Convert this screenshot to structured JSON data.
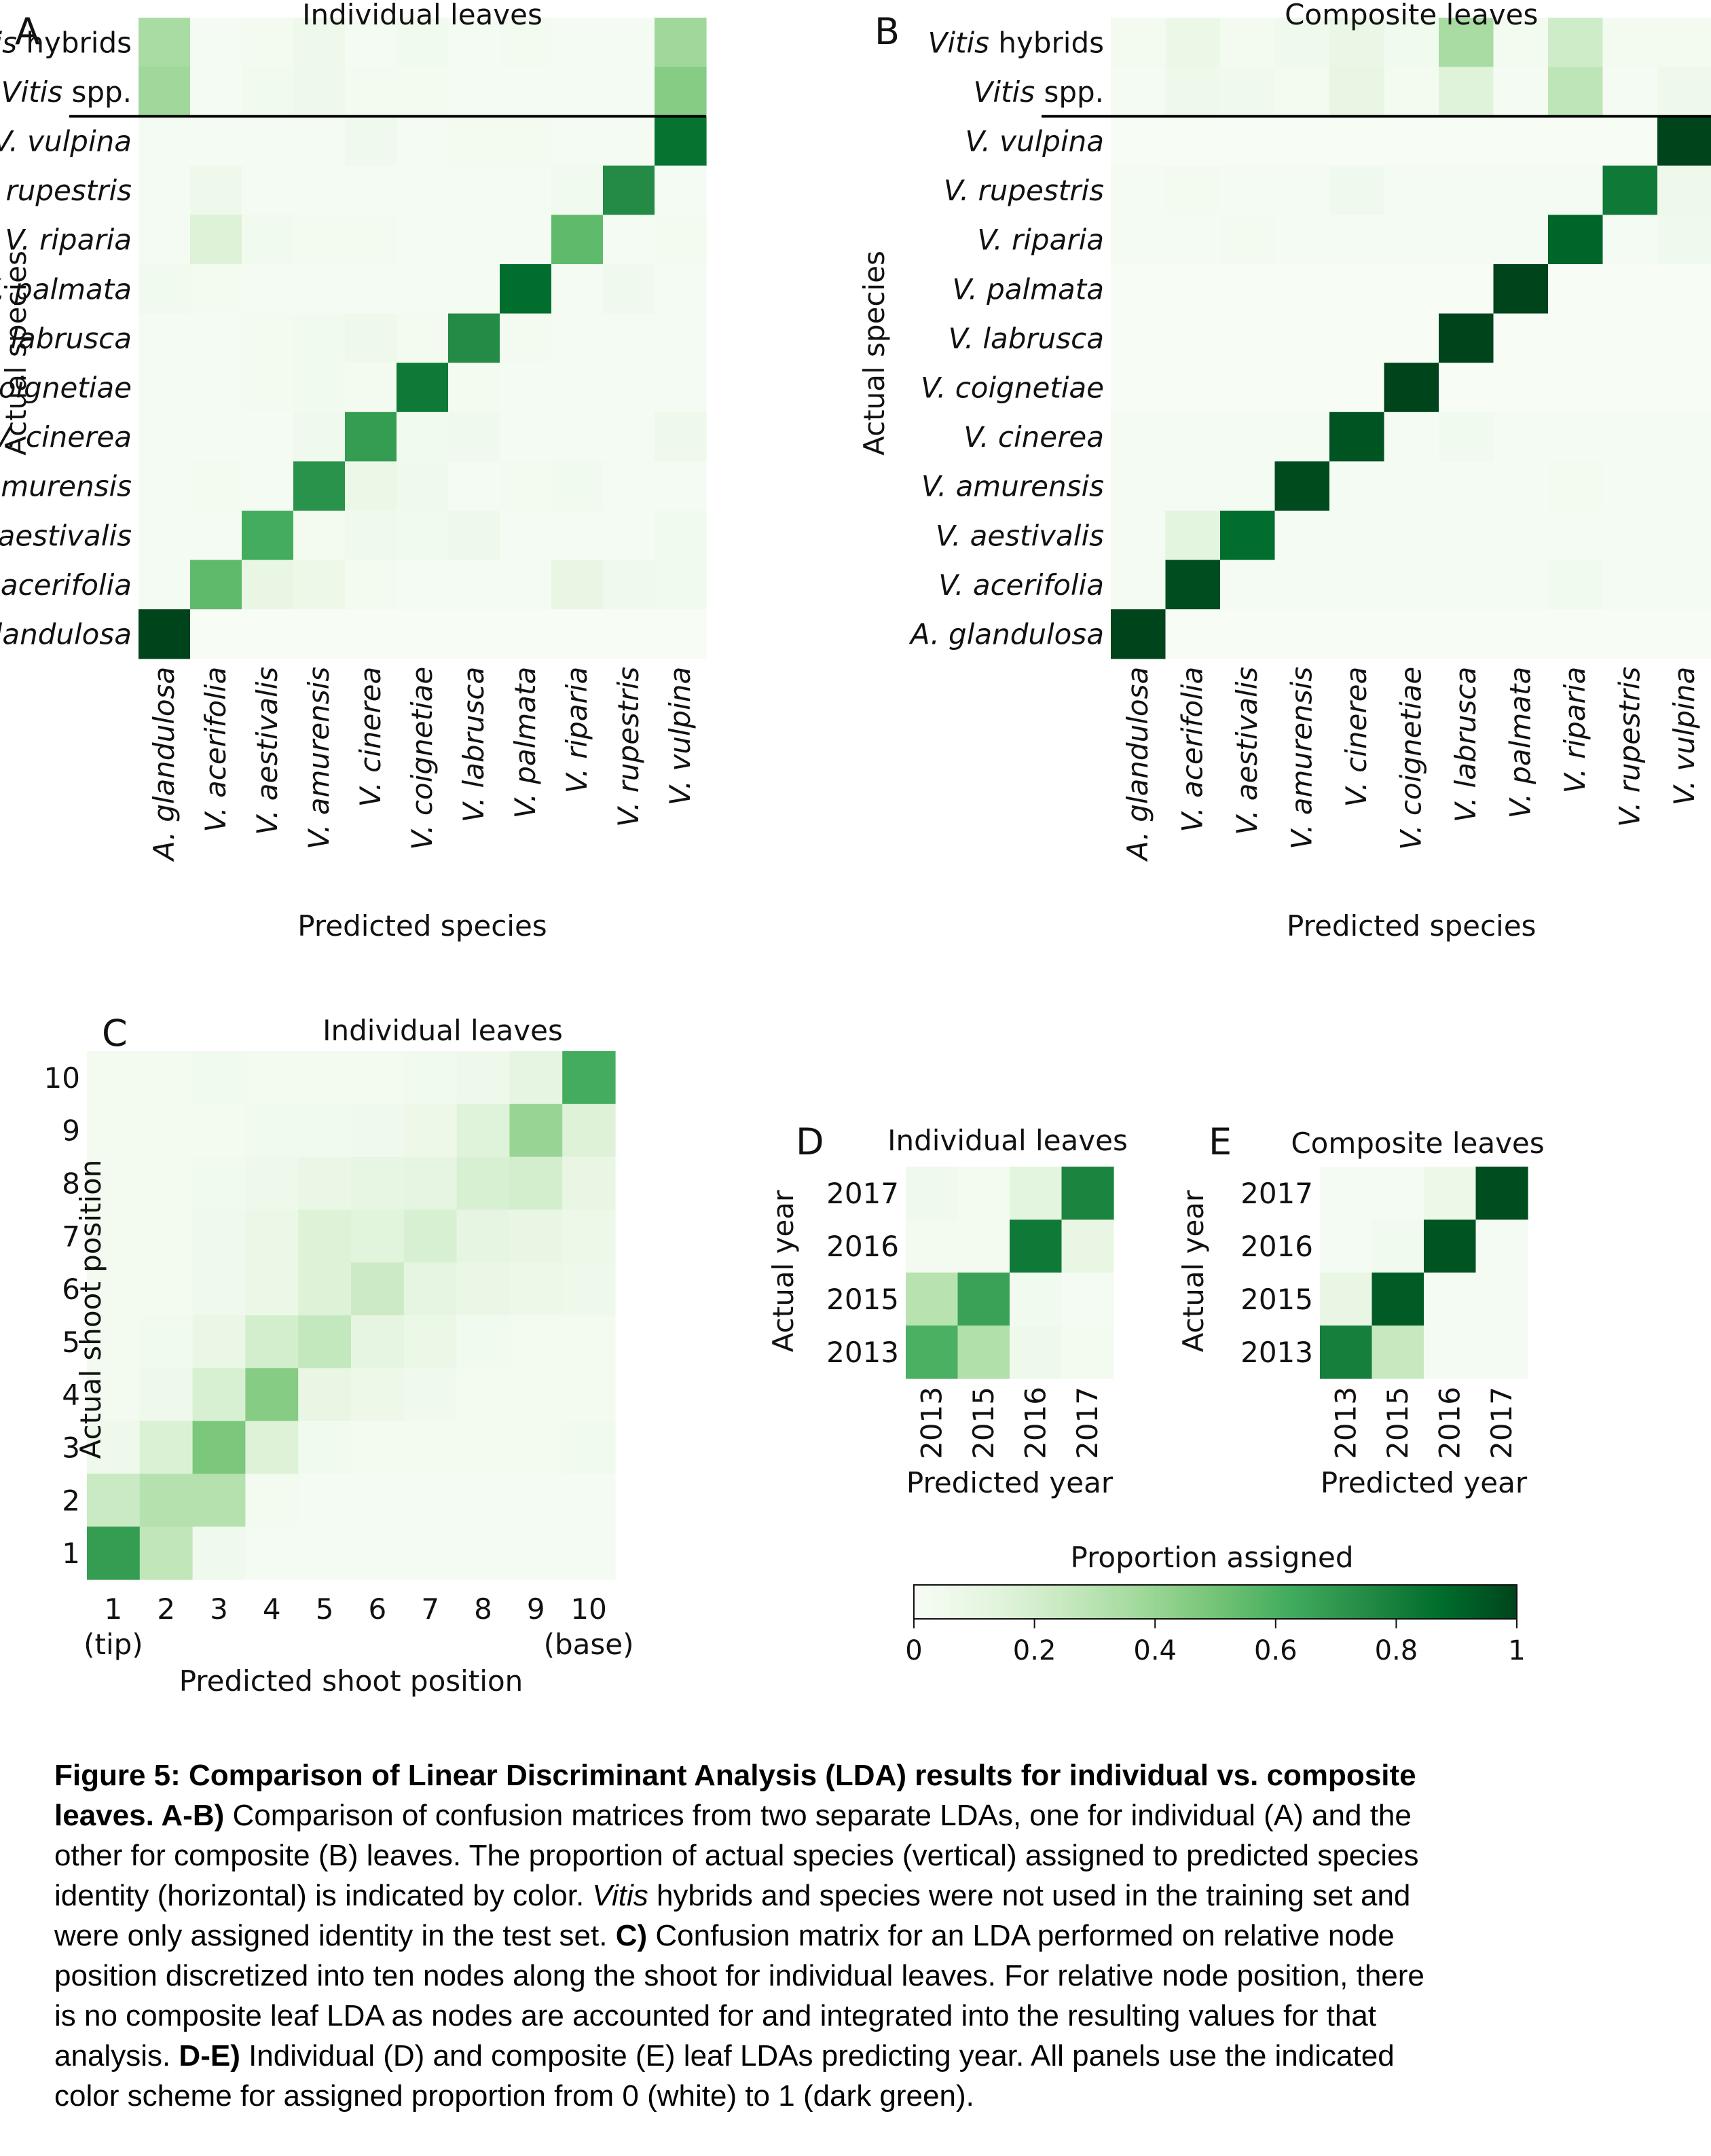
{
  "colorbar": {
    "title": "Proportion assigned",
    "ticks": [
      0,
      0.2,
      0.4,
      0.6,
      0.8,
      1
    ],
    "tick_labels": [
      "0",
      "0.2",
      "0.4",
      "0.6",
      "0.8",
      "1"
    ],
    "color_low": "#f7fcf5",
    "color_high": "#00441b"
  },
  "chart_data": [
    {
      "type": "heatmap",
      "panel": "A",
      "title": "Individual leaves",
      "xlabel": "Predicted species",
      "ylabel": "Actual species",
      "x_categories": [
        "A. glandulosa",
        "V. acerifolia",
        "V. aestivalis",
        "V. amurensis",
        "V. cinerea",
        "V. coignetiae",
        "V. labrusca",
        "V. palmata",
        "V. riparia",
        "V. rupestris",
        "V. vulpina"
      ],
      "y_categories": [
        "Vitis hybrids",
        "Vitis spp.",
        "V. vulpina",
        "V. rupestris",
        "V. riparia",
        "V. palmata",
        "V. labrusca",
        "V. coignetiae",
        "V. cinerea",
        "V. amurensis",
        "V. aestivalis",
        "V. acerifolia",
        "A. glandulosa"
      ],
      "values": [
        [
          0.35,
          0.02,
          0.03,
          0.06,
          0.02,
          0.04,
          0.02,
          0.03,
          0.02,
          0.02,
          0.38
        ],
        [
          0.38,
          0.02,
          0.04,
          0.06,
          0.03,
          0.03,
          0.02,
          0.02,
          0.02,
          0.02,
          0.45
        ],
        [
          0.02,
          0.02,
          0.02,
          0.02,
          0.05,
          0.02,
          0.03,
          0.03,
          0.02,
          0.02,
          0.85
        ],
        [
          0.02,
          0.06,
          0.02,
          0.02,
          0.02,
          0.02,
          0.02,
          0.02,
          0.04,
          0.75,
          0.02
        ],
        [
          0.02,
          0.16,
          0.04,
          0.03,
          0.03,
          0.02,
          0.02,
          0.02,
          0.55,
          0.02,
          0.03
        ],
        [
          0.04,
          0.03,
          0.02,
          0.02,
          0.02,
          0.02,
          0.02,
          0.87,
          0.02,
          0.05,
          0.02
        ],
        [
          0.02,
          0.02,
          0.03,
          0.04,
          0.06,
          0.03,
          0.75,
          0.03,
          0.02,
          0.02,
          0.02
        ],
        [
          0.02,
          0.02,
          0.03,
          0.04,
          0.03,
          0.82,
          0.03,
          0.02,
          0.02,
          0.02,
          0.02
        ],
        [
          0.02,
          0.02,
          0.02,
          0.05,
          0.68,
          0.04,
          0.05,
          0.02,
          0.02,
          0.02,
          0.06
        ],
        [
          0.02,
          0.03,
          0.02,
          0.72,
          0.08,
          0.05,
          0.02,
          0.03,
          0.04,
          0.02,
          0.02
        ],
        [
          0.02,
          0.02,
          0.62,
          0.03,
          0.05,
          0.04,
          0.06,
          0.02,
          0.02,
          0.02,
          0.04
        ],
        [
          0.02,
          0.55,
          0.1,
          0.07,
          0.03,
          0.02,
          0.02,
          0.02,
          0.1,
          0.05,
          0.04
        ],
        [
          1.0,
          0,
          0,
          0,
          0,
          0,
          0,
          0,
          0,
          0,
          0
        ]
      ],
      "separator_after_row": 2,
      "vmin": 0,
      "vmax": 1
    },
    {
      "type": "heatmap",
      "panel": "B",
      "title": "Composite leaves",
      "xlabel": "Predicted species",
      "ylabel": "Actual species",
      "x_categories": [
        "A. glandulosa",
        "V. acerifolia",
        "V. aestivalis",
        "V. amurensis",
        "V. cinerea",
        "V. coignetiae",
        "V. labrusca",
        "V. palmata",
        "V. riparia",
        "V. rupestris",
        "V. vulpina"
      ],
      "y_categories": [
        "Vitis hybrids",
        "Vitis spp.",
        "V. vulpina",
        "V. rupestris",
        "V. riparia",
        "V. palmata",
        "V. labrusca",
        "V. coignetiae",
        "V. cinerea",
        "V. amurensis",
        "V. aestivalis",
        "V. acerifolia",
        "A. glandulosa"
      ],
      "values": [
        [
          0.03,
          0.08,
          0.03,
          0.05,
          0.09,
          0.04,
          0.35,
          0.03,
          0.22,
          0.03,
          0.03
        ],
        [
          0.02,
          0.06,
          0.05,
          0.03,
          0.1,
          0.03,
          0.15,
          0.02,
          0.28,
          0.02,
          0.06
        ],
        [
          0,
          0,
          0,
          0,
          0,
          0,
          0,
          0,
          0,
          0,
          1.0
        ],
        [
          0.02,
          0.03,
          0.02,
          0.02,
          0.05,
          0.02,
          0.02,
          0.02,
          0.02,
          0.82,
          0.06
        ],
        [
          0.02,
          0.02,
          0.03,
          0.02,
          0.02,
          0.02,
          0.02,
          0.02,
          0.9,
          0.02,
          0.05
        ],
        [
          0,
          0,
          0,
          0,
          0,
          0,
          0,
          1.0,
          0,
          0,
          0
        ],
        [
          0,
          0,
          0,
          0,
          0,
          0,
          1.0,
          0,
          0,
          0,
          0
        ],
        [
          0,
          0,
          0,
          0,
          0,
          1.0,
          0,
          0,
          0,
          0,
          0
        ],
        [
          0.02,
          0.02,
          0.02,
          0.02,
          0.95,
          0.02,
          0.04,
          0.02,
          0.02,
          0.02,
          0.02
        ],
        [
          0.02,
          0.02,
          0.02,
          0.98,
          0.02,
          0.02,
          0.02,
          0.02,
          0.03,
          0.02,
          0.02
        ],
        [
          0.02,
          0.13,
          0.87,
          0.02,
          0.02,
          0.02,
          0.02,
          0.02,
          0.02,
          0.02,
          0.02
        ],
        [
          0.02,
          0.97,
          0.02,
          0.02,
          0.02,
          0.02,
          0.02,
          0.02,
          0.04,
          0.02,
          0.02
        ],
        [
          1.0,
          0,
          0,
          0,
          0,
          0,
          0,
          0,
          0,
          0,
          0
        ]
      ],
      "separator_after_row": 2,
      "vmin": 0,
      "vmax": 1
    },
    {
      "type": "heatmap",
      "panel": "C",
      "title": "Individual leaves",
      "xlabel": "Predicted shoot position",
      "ylabel": "Actual shoot position",
      "x_categories": [
        "1",
        "2",
        "3",
        "4",
        "5",
        "6",
        "7",
        "8",
        "9",
        "10"
      ],
      "x_sublabels": [
        "(tip)",
        "",
        "",
        "",
        "",
        "",
        "",
        "",
        "",
        "(base)"
      ],
      "y_categories": [
        "10",
        "9",
        "8",
        "7",
        "6",
        "5",
        "4",
        "3",
        "2",
        "1"
      ],
      "values": [
        [
          0.03,
          0.03,
          0.04,
          0.03,
          0.03,
          0.03,
          0.04,
          0.06,
          0.12,
          0.62
        ],
        [
          0.03,
          0.03,
          0.03,
          0.04,
          0.04,
          0.05,
          0.07,
          0.15,
          0.4,
          0.16
        ],
        [
          0.03,
          0.03,
          0.04,
          0.06,
          0.09,
          0.11,
          0.12,
          0.18,
          0.2,
          0.1
        ],
        [
          0.03,
          0.03,
          0.05,
          0.08,
          0.16,
          0.14,
          0.18,
          0.12,
          0.1,
          0.07
        ],
        [
          0.03,
          0.03,
          0.05,
          0.08,
          0.16,
          0.23,
          0.12,
          0.09,
          0.07,
          0.06
        ],
        [
          0.03,
          0.04,
          0.09,
          0.2,
          0.26,
          0.12,
          0.08,
          0.04,
          0.03,
          0.03
        ],
        [
          0.03,
          0.06,
          0.18,
          0.45,
          0.1,
          0.07,
          0.05,
          0.03,
          0.03,
          0.03
        ],
        [
          0.06,
          0.17,
          0.48,
          0.16,
          0.04,
          0.03,
          0.03,
          0.03,
          0.03,
          0.04
        ],
        [
          0.24,
          0.31,
          0.31,
          0.03,
          0.02,
          0.02,
          0.02,
          0.02,
          0.02,
          0.02
        ],
        [
          0.68,
          0.27,
          0.05,
          0.02,
          0.02,
          0.02,
          0.02,
          0.02,
          0.02,
          0.02
        ]
      ],
      "vmin": 0,
      "vmax": 1
    },
    {
      "type": "heatmap",
      "panel": "D",
      "title": "Individual leaves",
      "xlabel": "Predicted year",
      "ylabel": "Actual year",
      "x_categories": [
        "2013",
        "2015",
        "2016",
        "2017"
      ],
      "y_categories": [
        "2017",
        "2016",
        "2015",
        "2013"
      ],
      "values": [
        [
          0.05,
          0.03,
          0.13,
          0.78
        ],
        [
          0.03,
          0.03,
          0.82,
          0.1
        ],
        [
          0.3,
          0.66,
          0.04,
          0.02
        ],
        [
          0.6,
          0.32,
          0.06,
          0.03
        ]
      ],
      "vmin": 0,
      "vmax": 1
    },
    {
      "type": "heatmap",
      "panel": "E",
      "title": "Composite leaves",
      "xlabel": "Predicted year",
      "ylabel": "Actual year",
      "x_categories": [
        "2013",
        "2015",
        "2016",
        "2017"
      ],
      "y_categories": [
        "2017",
        "2016",
        "2015",
        "2013"
      ],
      "values": [
        [
          0.02,
          0.02,
          0.07,
          0.97
        ],
        [
          0.02,
          0.04,
          0.95,
          0.02
        ],
        [
          0.1,
          0.93,
          0.02,
          0.02
        ],
        [
          0.8,
          0.25,
          0.02,
          0.02
        ]
      ],
      "vmin": 0,
      "vmax": 1
    }
  ],
  "caption": {
    "lines": [
      [
        {
          "b": "Figure 5: Comparison of Linear Discriminant Analysis (LDA) results for individual vs. composite"
        }
      ],
      [
        {
          "b": "leaves. A-B)"
        },
        {
          "t": " Comparison of confusion matrices from two separate LDAs, one for individual (A) and the"
        }
      ],
      [
        {
          "t": "other for composite (B) leaves. The proportion of actual species (vertical) assigned to predicted species"
        }
      ],
      [
        {
          "t": "identity (horizontal) is indicated by color. "
        },
        {
          "i": "Vitis"
        },
        {
          "t": " hybrids and species were not used in the training set and"
        }
      ],
      [
        {
          "t": "were only assigned identity in the test set. "
        },
        {
          "b": "C)"
        },
        {
          "t": " Confusion matrix for an LDA performed on relative node"
        }
      ],
      [
        {
          "t": "position discretized into ten nodes along the shoot for individual leaves. For relative node position, there"
        }
      ],
      [
        {
          "t": "is no composite leaf LDA as nodes are accounted for and integrated into the resulting values for that"
        }
      ],
      [
        {
          "t": "analysis. "
        },
        {
          "b": "D-E)"
        },
        {
          "t": " Individual (D) and composite (E) leaf LDAs predicting year. All panels use the indicated"
        }
      ],
      [
        {
          "t": "color scheme for assigned proportion from 0 (white) to 1 (dark green)."
        }
      ]
    ]
  }
}
